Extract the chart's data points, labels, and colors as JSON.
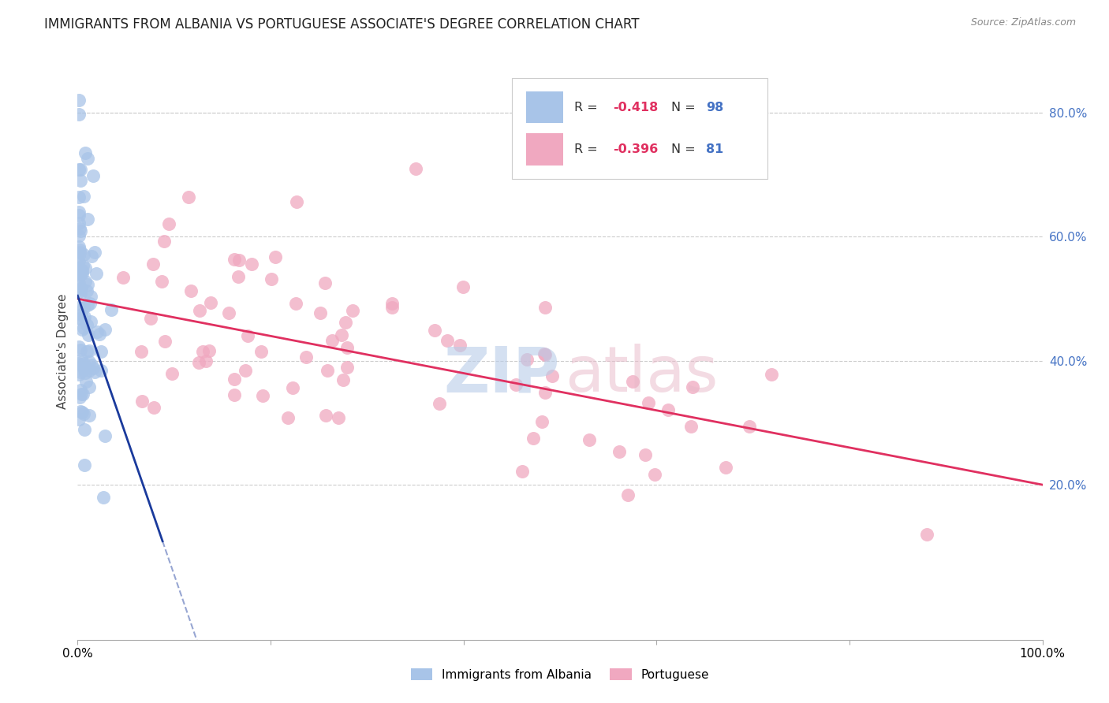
{
  "title": "IMMIGRANTS FROM ALBANIA VS PORTUGUESE ASSOCIATE'S DEGREE CORRELATION CHART",
  "source": "Source: ZipAtlas.com",
  "ylabel": "Associate's Degree",
  "right_yticks": [
    "20.0%",
    "40.0%",
    "60.0%",
    "80.0%"
  ],
  "right_ytick_vals": [
    0.2,
    0.4,
    0.6,
    0.8
  ],
  "scatter_color_albania": "#a8c4e8",
  "scatter_color_portuguese": "#f0a8c0",
  "line_color_albania": "#1a3a9c",
  "line_color_portuguese": "#e03060",
  "xlim": [
    0.0,
    1.0
  ],
  "ylim": [
    -0.05,
    0.88
  ],
  "grid_color": "#cccccc",
  "background_color": "#ffffff",
  "title_fontsize": 12,
  "axis_label_fontsize": 11,
  "albania_R": "-0.418",
  "albania_N": "98",
  "portuguese_R": "-0.396",
  "portuguese_N": "81"
}
